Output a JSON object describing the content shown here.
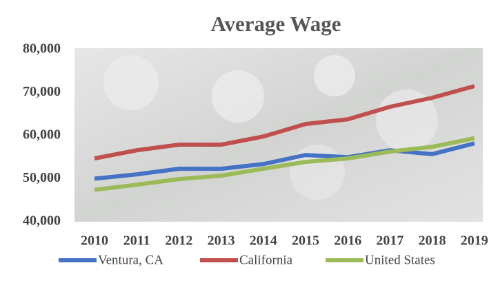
{
  "chart_data": {
    "type": "line",
    "title": "Average Wage",
    "categories": [
      "2010",
      "2011",
      "2012",
      "2013",
      "2014",
      "2015",
      "2016",
      "2017",
      "2018",
      "2019"
    ],
    "series": [
      {
        "name": "Ventura, CA",
        "color": "#4472c4",
        "values": [
          50000,
          51000,
          52300,
          52300,
          53400,
          55500,
          55000,
          56600,
          55700,
          58200
        ]
      },
      {
        "name": "California",
        "color": "#c0504d",
        "values": [
          54700,
          56600,
          57900,
          57900,
          59800,
          62700,
          63800,
          66700,
          68800,
          71500
        ]
      },
      {
        "name": "United States",
        "color": "#9bbb59",
        "values": [
          47400,
          48600,
          49900,
          50700,
          52300,
          53900,
          54700,
          56300,
          57400,
          59400
        ]
      }
    ],
    "ylim": [
      40000,
      80000
    ],
    "yticks": [
      {
        "value": 40000,
        "label": "40,000"
      },
      {
        "value": 50000,
        "label": "50,000"
      },
      {
        "value": 60000,
        "label": "60,000"
      },
      {
        "value": 70000,
        "label": "70,000"
      },
      {
        "value": 80000,
        "label": "80,000"
      }
    ],
    "legend": "bottom"
  }
}
